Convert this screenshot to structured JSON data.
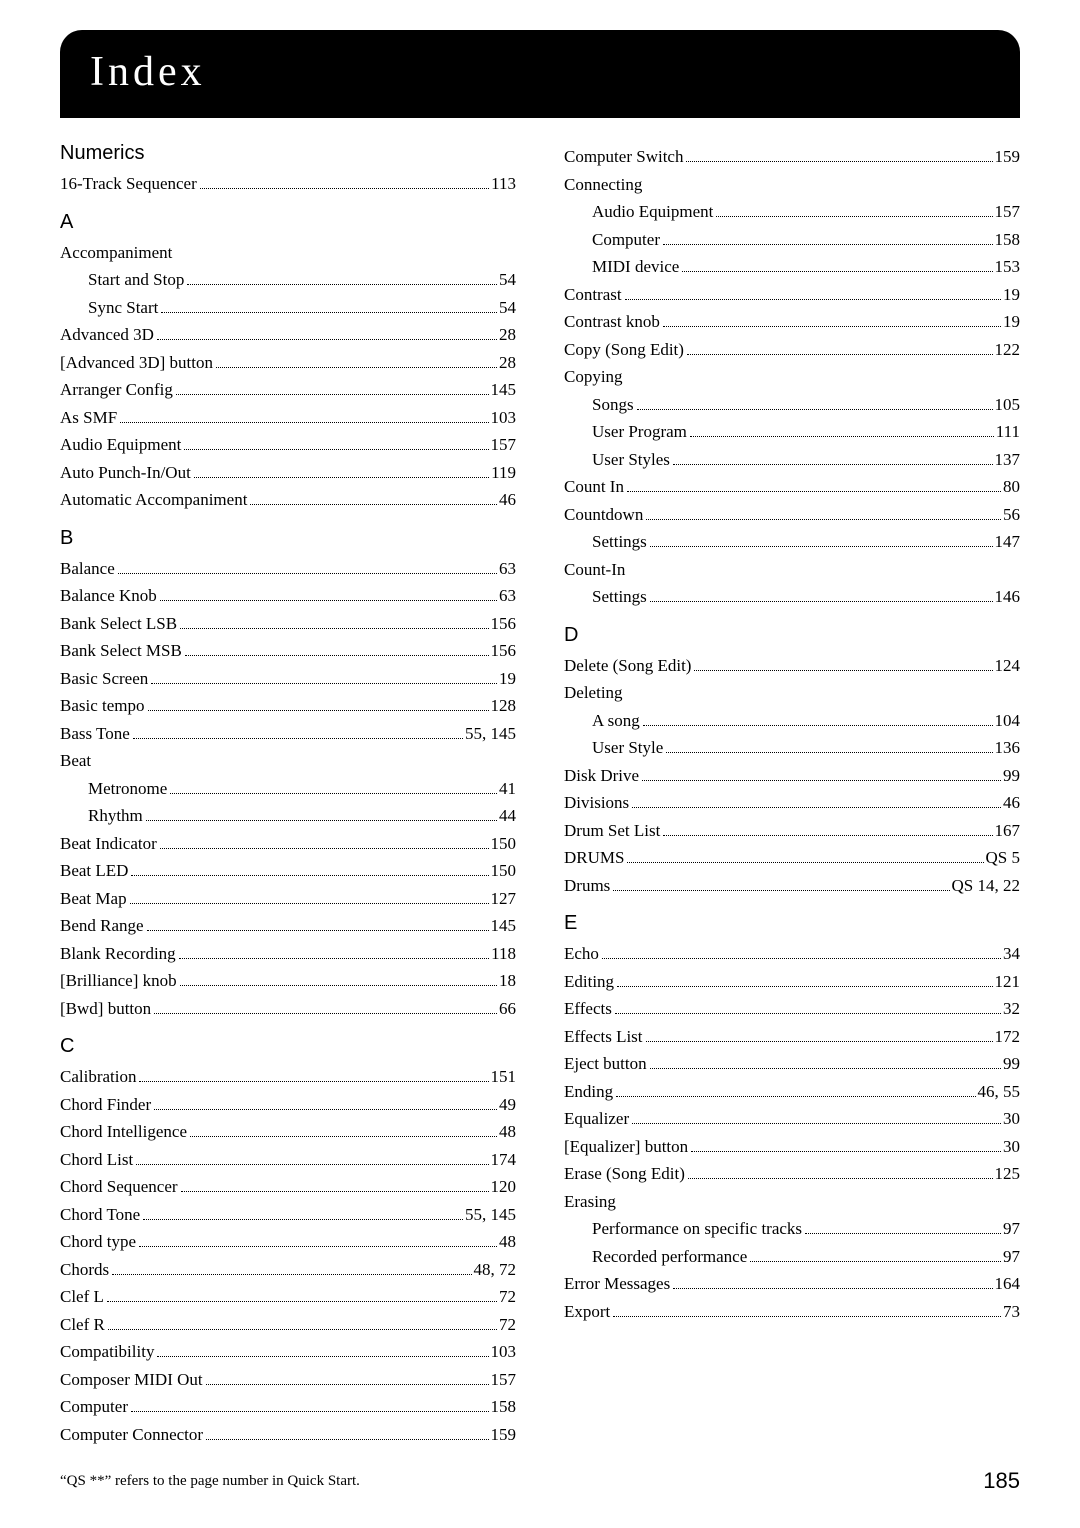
{
  "colors": {
    "background": "#ffffff",
    "text": "#000000",
    "title_bg": "#000000",
    "title_fg": "#ffffff"
  },
  "typography": {
    "title_fontsize": 42,
    "title_letterspacing": 4,
    "section_head_fontsize": 20,
    "entry_fontsize": 17,
    "footnote_fontsize": 15,
    "pagenum_fontsize": 22
  },
  "title": "Index",
  "footnote": "“QS **” refers to the page number in Quick Start.",
  "page_number": "185",
  "columns": [
    [
      {
        "type": "head",
        "text": "Numerics"
      },
      {
        "type": "entry",
        "label": "16-Track Sequencer",
        "page": "113"
      },
      {
        "type": "head",
        "text": "A"
      },
      {
        "type": "entry",
        "label": "Accompaniment",
        "page": ""
      },
      {
        "type": "sub",
        "label": "Start and Stop",
        "page": "54"
      },
      {
        "type": "sub",
        "label": "Sync Start",
        "page": "54"
      },
      {
        "type": "entry",
        "label": "Advanced 3D",
        "page": "28"
      },
      {
        "type": "entry",
        "label": "[Advanced 3D] button",
        "page": "28"
      },
      {
        "type": "entry",
        "label": "Arranger Config",
        "page": "145"
      },
      {
        "type": "entry",
        "label": "As SMF",
        "page": "103"
      },
      {
        "type": "entry",
        "label": "Audio Equipment",
        "page": "157"
      },
      {
        "type": "entry",
        "label": "Auto Punch-In/Out",
        "page": "119"
      },
      {
        "type": "entry",
        "label": "Automatic Accompaniment",
        "page": "46"
      },
      {
        "type": "head",
        "text": "B"
      },
      {
        "type": "entry",
        "label": "Balance",
        "page": "63"
      },
      {
        "type": "entry",
        "label": "Balance Knob",
        "page": "63"
      },
      {
        "type": "entry",
        "label": "Bank Select LSB",
        "page": "156"
      },
      {
        "type": "entry",
        "label": "Bank Select MSB",
        "page": "156"
      },
      {
        "type": "entry",
        "label": "Basic Screen",
        "page": "19"
      },
      {
        "type": "entry",
        "label": "Basic tempo",
        "page": "128"
      },
      {
        "type": "entry",
        "label": "Bass Tone",
        "page": "55, 145"
      },
      {
        "type": "entry",
        "label": "Beat",
        "page": ""
      },
      {
        "type": "sub",
        "label": "Metronome",
        "page": "41"
      },
      {
        "type": "sub",
        "label": "Rhythm",
        "page": "44"
      },
      {
        "type": "entry",
        "label": "Beat Indicator",
        "page": "150"
      },
      {
        "type": "entry",
        "label": "Beat LED",
        "page": "150"
      },
      {
        "type": "entry",
        "label": "Beat Map",
        "page": "127"
      },
      {
        "type": "entry",
        "label": "Bend Range",
        "page": "145"
      },
      {
        "type": "entry",
        "label": "Blank Recording",
        "page": "118"
      },
      {
        "type": "entry",
        "label": "[Brilliance] knob",
        "page": "18"
      },
      {
        "type": "entry",
        "label": "[Bwd] button",
        "page": "66"
      },
      {
        "type": "head",
        "text": "C"
      },
      {
        "type": "entry",
        "label": "Calibration",
        "page": "151"
      },
      {
        "type": "entry",
        "label": "Chord Finder",
        "page": "49"
      },
      {
        "type": "entry",
        "label": "Chord Intelligence",
        "page": "48"
      },
      {
        "type": "entry",
        "label": "Chord List",
        "page": "174"
      },
      {
        "type": "entry",
        "label": "Chord Sequencer",
        "page": "120"
      },
      {
        "type": "entry",
        "label": "Chord Tone",
        "page": "55, 145"
      },
      {
        "type": "entry",
        "label": "Chord type",
        "page": "48"
      },
      {
        "type": "entry",
        "label": "Chords",
        "page": "48, 72"
      },
      {
        "type": "entry",
        "label": "Clef L",
        "page": "72"
      },
      {
        "type": "entry",
        "label": "Clef R",
        "page": "72"
      },
      {
        "type": "entry",
        "label": "Compatibility",
        "page": "103"
      },
      {
        "type": "entry",
        "label": "Composer MIDI Out",
        "page": "157"
      },
      {
        "type": "entry",
        "label": "Computer",
        "page": "158"
      },
      {
        "type": "entry",
        "label": "Computer Connector",
        "page": "159"
      }
    ],
    [
      {
        "type": "entry",
        "label": "Computer Switch",
        "page": "159"
      },
      {
        "type": "entry",
        "label": "Connecting",
        "page": ""
      },
      {
        "type": "sub",
        "label": "Audio Equipment",
        "page": "157"
      },
      {
        "type": "sub",
        "label": "Computer",
        "page": "158"
      },
      {
        "type": "sub",
        "label": "MIDI device",
        "page": "153"
      },
      {
        "type": "entry",
        "label": "Contrast",
        "page": "19"
      },
      {
        "type": "entry",
        "label": "Contrast knob",
        "page": "19"
      },
      {
        "type": "entry",
        "label": "Copy (Song Edit)",
        "page": "122"
      },
      {
        "type": "entry",
        "label": "Copying",
        "page": ""
      },
      {
        "type": "sub",
        "label": "Songs",
        "page": "105"
      },
      {
        "type": "sub",
        "label": "User Program",
        "page": "111"
      },
      {
        "type": "sub",
        "label": "User Styles",
        "page": "137"
      },
      {
        "type": "entry",
        "label": "Count In",
        "page": "80"
      },
      {
        "type": "entry",
        "label": "Countdown",
        "page": "56"
      },
      {
        "type": "sub",
        "label": "Settings",
        "page": "147"
      },
      {
        "type": "entry",
        "label": "Count-In",
        "page": ""
      },
      {
        "type": "sub",
        "label": "Settings",
        "page": "146"
      },
      {
        "type": "head",
        "text": "D"
      },
      {
        "type": "entry",
        "label": "Delete (Song Edit)",
        "page": "124"
      },
      {
        "type": "entry",
        "label": "Deleting",
        "page": ""
      },
      {
        "type": "sub",
        "label": "A song",
        "page": "104"
      },
      {
        "type": "sub",
        "label": "User Style",
        "page": "136"
      },
      {
        "type": "entry",
        "label": "Disk Drive",
        "page": "99"
      },
      {
        "type": "entry",
        "label": "Divisions",
        "page": "46"
      },
      {
        "type": "entry",
        "label": "Drum Set List",
        "page": "167"
      },
      {
        "type": "entry",
        "label": "DRUMS",
        "page": " QS 5"
      },
      {
        "type": "entry",
        "label": "Drums",
        "page": "QS 14, 22"
      },
      {
        "type": "head",
        "text": "E"
      },
      {
        "type": "entry",
        "label": "Echo",
        "page": "34"
      },
      {
        "type": "entry",
        "label": "Editing",
        "page": "121"
      },
      {
        "type": "entry",
        "label": "Effects",
        "page": "32"
      },
      {
        "type": "entry",
        "label": "Effects List",
        "page": "172"
      },
      {
        "type": "entry",
        "label": "Eject button",
        "page": "99"
      },
      {
        "type": "entry",
        "label": "Ending",
        "page": "46, 55"
      },
      {
        "type": "entry",
        "label": "Equalizer",
        "page": "30"
      },
      {
        "type": "entry",
        "label": "[Equalizer] button",
        "page": "30"
      },
      {
        "type": "entry",
        "label": "Erase (Song Edit)",
        "page": "125"
      },
      {
        "type": "entry",
        "label": "Erasing",
        "page": ""
      },
      {
        "type": "sub",
        "label": "Performance on specific tracks",
        "page": "97"
      },
      {
        "type": "sub",
        "label": "Recorded performance",
        "page": "97"
      },
      {
        "type": "entry",
        "label": "Error Messages",
        "page": "164"
      },
      {
        "type": "entry",
        "label": "Export",
        "page": "73"
      }
    ]
  ]
}
